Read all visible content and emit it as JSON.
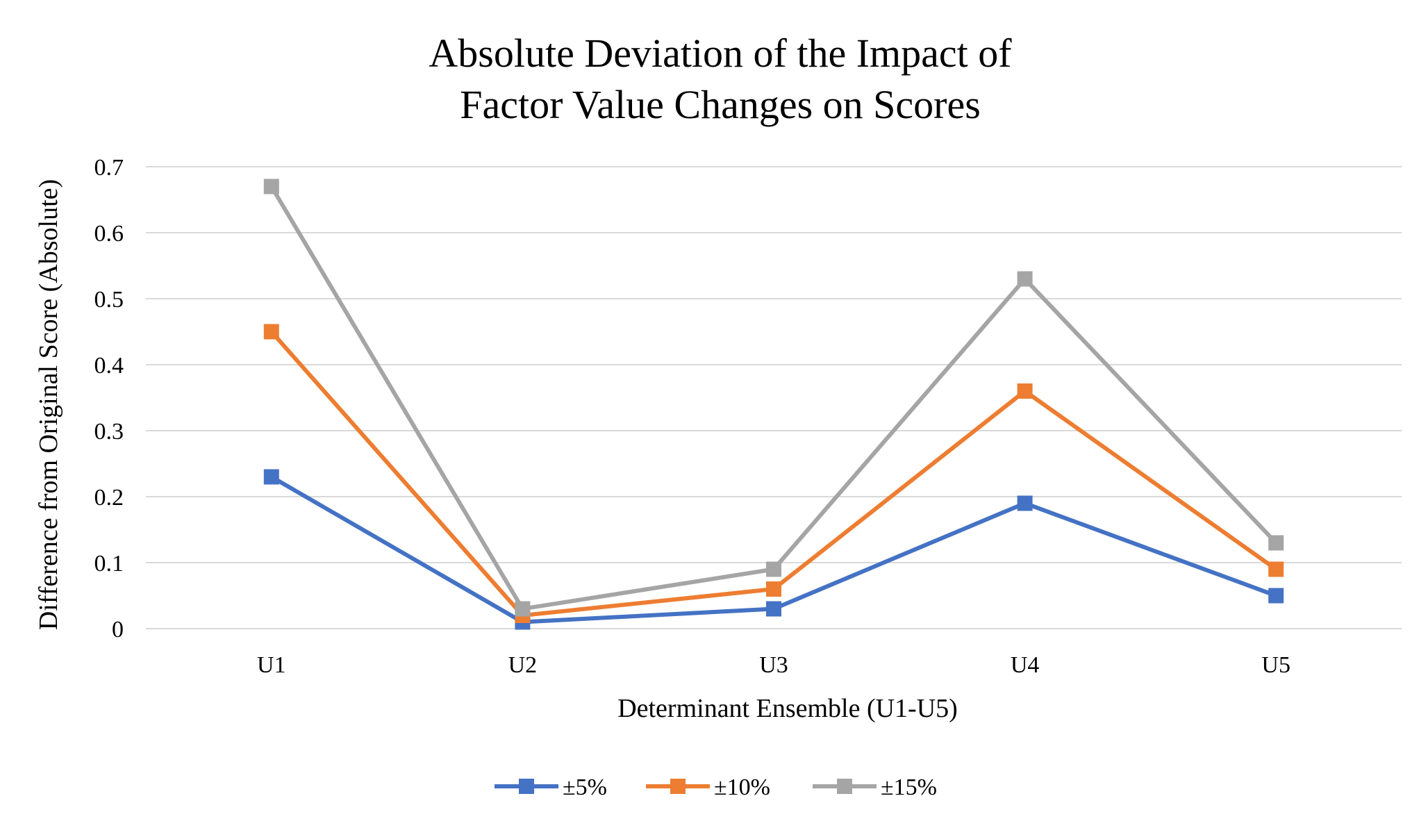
{
  "chart_data": {
    "type": "line",
    "title": "Absolute Deviation of the Impact of\nFactor Value Changes on Scores",
    "xlabel": "Determinant Ensemble (U1-U5)",
    "ylabel": "Difference  from Original Score (Absolute)",
    "categories": [
      "U1",
      "U2",
      "U3",
      "U4",
      "U5"
    ],
    "ylim": [
      0,
      0.7
    ],
    "yticks": [
      0,
      0.1,
      0.2,
      0.3,
      0.4,
      0.5,
      0.6,
      0.7
    ],
    "grid": true,
    "legend": "bottom-center",
    "marker": "square",
    "series": [
      {
        "name": "±5%",
        "color": "#4472c4",
        "values": [
          0.23,
          0.01,
          0.03,
          0.19,
          0.05
        ]
      },
      {
        "name": "±10%",
        "color": "#ed7d31",
        "values": [
          0.45,
          0.02,
          0.06,
          0.36,
          0.09
        ]
      },
      {
        "name": "±15%",
        "color": "#a5a5a5",
        "values": [
          0.67,
          0.03,
          0.09,
          0.53,
          0.13
        ]
      }
    ]
  }
}
